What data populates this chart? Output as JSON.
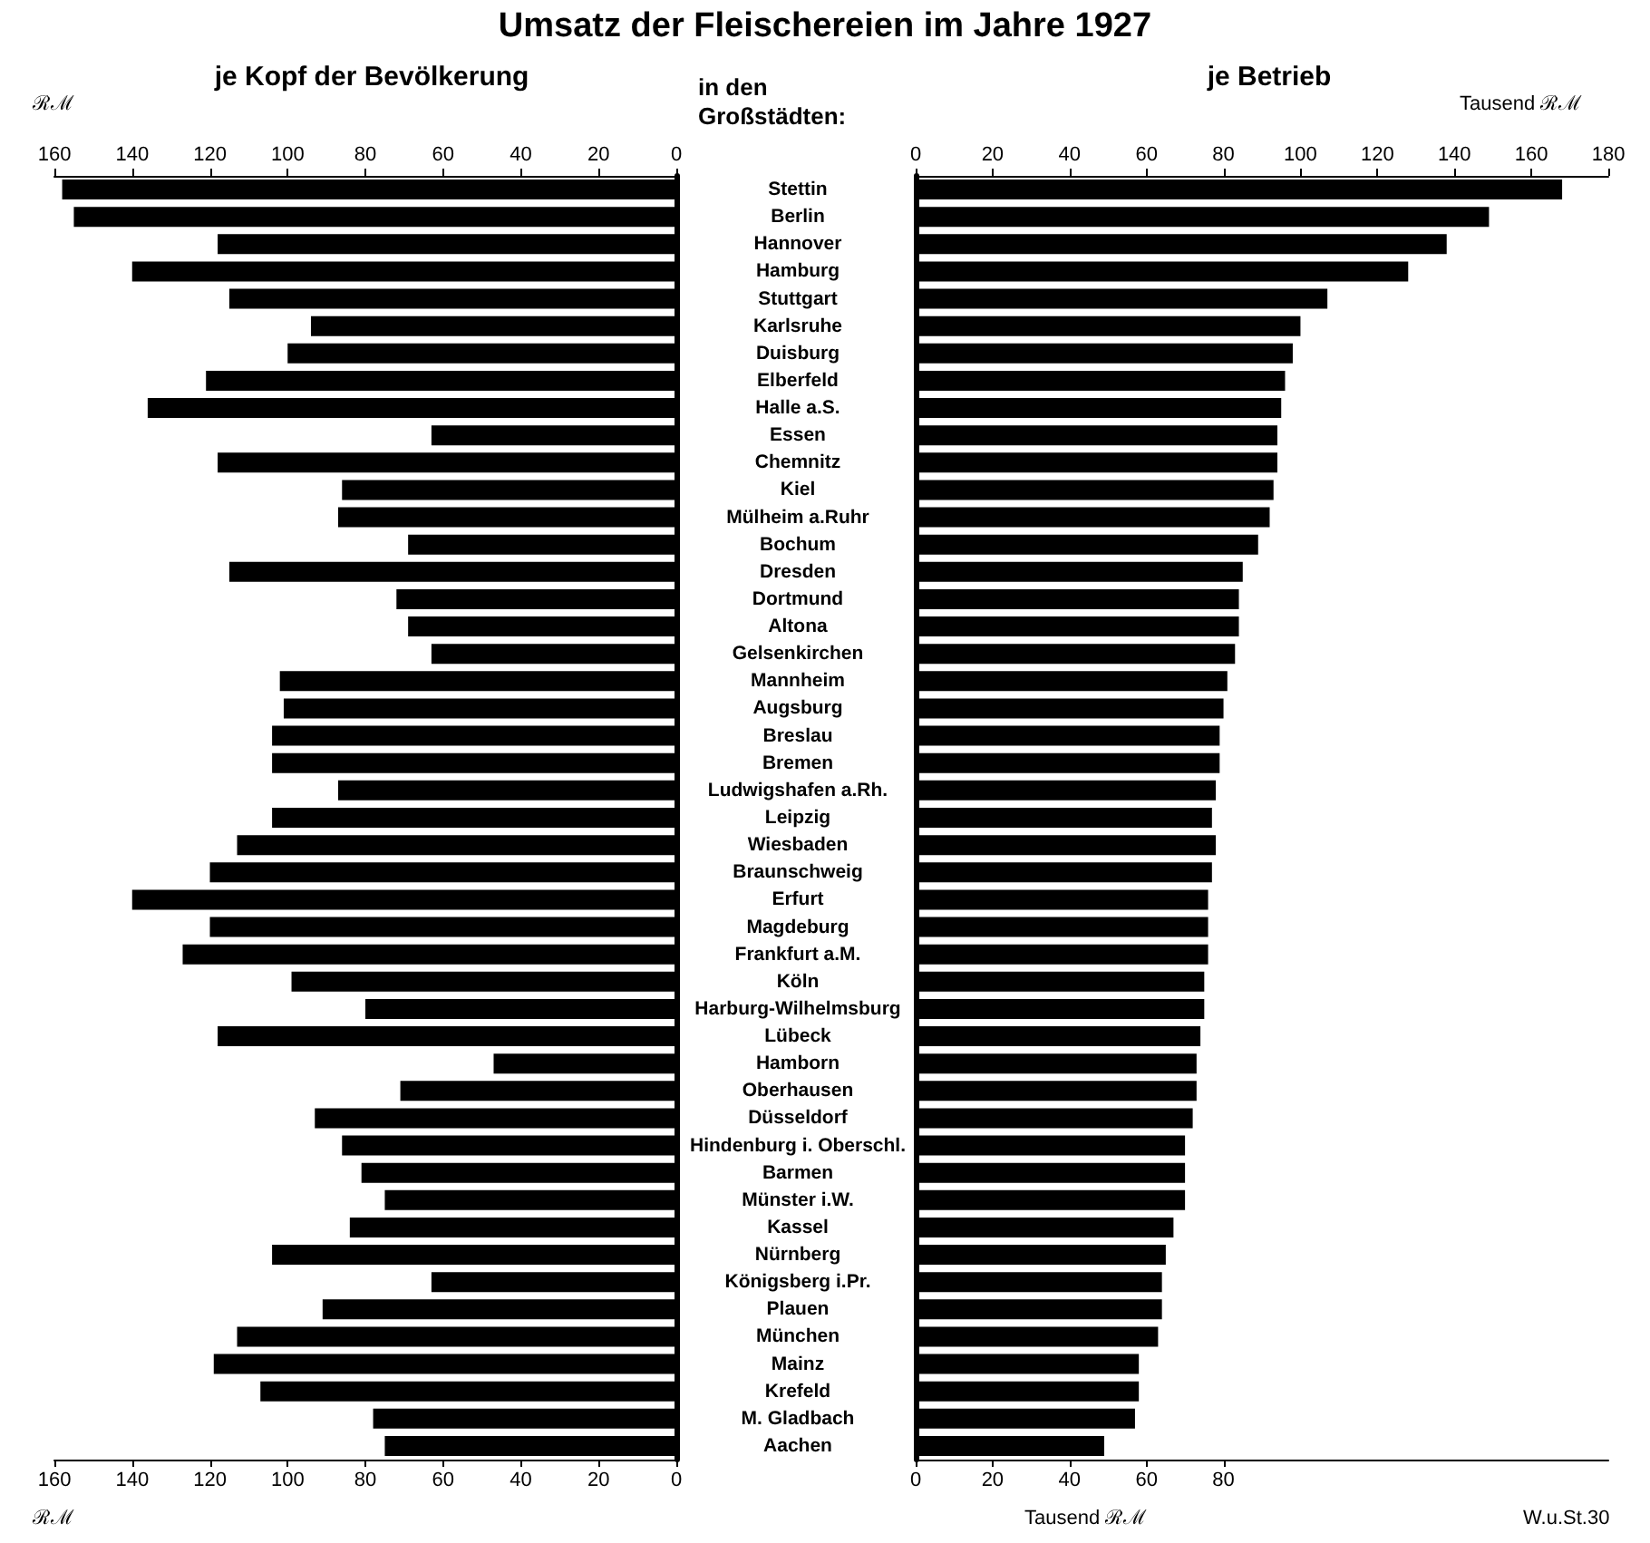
{
  "chart_data": [
    {
      "type": "bar",
      "orientation": "horizontal",
      "title": "Umsatz der Fleischereien im Jahre 1927",
      "subtitle": "je Kopf der Bevölkerung",
      "color": "#000000",
      "categories": [
        "Stettin",
        "Berlin",
        "Hannover",
        "Hamburg",
        "Stuttgart",
        "Karlsruhe",
        "Duisburg",
        "Elberfeld",
        "Halle a.S.",
        "Essen",
        "Chemnitz",
        "Kiel",
        "Mülheim a.Ruhr",
        "Bochum",
        "Dresden",
        "Dortmund",
        "Altona",
        "Gelsenkirchen",
        "Mannheim",
        "Augsburg",
        "Breslau",
        "Bremen",
        "Ludwigshafen a.Rh.",
        "Leipzig",
        "Wiesbaden",
        "Braunschweig",
        "Erfurt",
        "Magdeburg",
        "Frankfurt a.M.",
        "Köln",
        "Harburg-Wilhelmsburg",
        "Lübeck",
        "Hamborn",
        "Oberhausen",
        "Düsseldorf",
        "Hindenburg i. Oberschl.",
        "Barmen",
        "Münster i.W.",
        "Kassel",
        "Nürnberg",
        "Königsberg i.Pr.",
        "Plauen",
        "München",
        "Mainz",
        "Krefeld",
        "M. Gladbach",
        "Aachen"
      ],
      "values": [
        158,
        155,
        118,
        140,
        115,
        94,
        100,
        121,
        136,
        63,
        118,
        86,
        87,
        69,
        115,
        72,
        69,
        63,
        102,
        101,
        104,
        104,
        87,
        104,
        113,
        120,
        140,
        120,
        127,
        99,
        80,
        118,
        47,
        71,
        93,
        86,
        81,
        75,
        84,
        104,
        63,
        91,
        113,
        119,
        107,
        78,
        75
      ],
      "xlim": [
        160,
        0
      ],
      "xticks": [
        0,
        20,
        40,
        60,
        80,
        100,
        120,
        140,
        160
      ],
      "x2lim": [
        160,
        0
      ],
      "x2ticks": [
        0,
        20,
        40,
        60,
        80,
        100,
        120,
        140,
        160
      ],
      "xlabel": "ℛℳ",
      "x2label": "ℛℳ",
      "ylabel": "in den Großstädten:"
    },
    {
      "type": "bar",
      "orientation": "horizontal",
      "title": "je Betrieb",
      "color": "#000000",
      "tick_labels": "x",
      "categories": [
        null,
        null,
        null,
        null,
        null,
        null,
        null,
        null,
        null,
        null,
        null,
        null,
        null,
        null,
        null,
        null,
        null,
        null,
        null,
        null,
        null,
        null,
        null,
        null,
        null,
        null,
        null,
        null,
        null,
        null,
        null,
        null,
        null,
        null,
        null,
        null,
        null,
        null,
        null,
        null,
        null,
        null,
        null,
        null,
        null,
        null,
        null
      ],
      "values": [
        168,
        149,
        138,
        128,
        107,
        100,
        98,
        96,
        95,
        94,
        94,
        93,
        92,
        89,
        85,
        84,
        84,
        83,
        81,
        80,
        79,
        79,
        78,
        77,
        78,
        77,
        76,
        76,
        76,
        75,
        75,
        74,
        73,
        73,
        72,
        70,
        70,
        70,
        67,
        65,
        64,
        64,
        63,
        58,
        58,
        57,
        49
      ],
      "xlim": [
        0,
        180
      ],
      "xticks": [
        0,
        20,
        40,
        60,
        80
      ],
      "x2lim": [
        0,
        180
      ],
      "x2ticks": [
        0,
        20,
        40,
        60,
        80,
        100,
        120,
        140,
        160,
        180
      ],
      "xlabel": "Tausend ℛℳ",
      "x2label": "Tausend ℛℳ",
      "annotations": [
        "W.u.St.30"
      ]
    }
  ]
}
